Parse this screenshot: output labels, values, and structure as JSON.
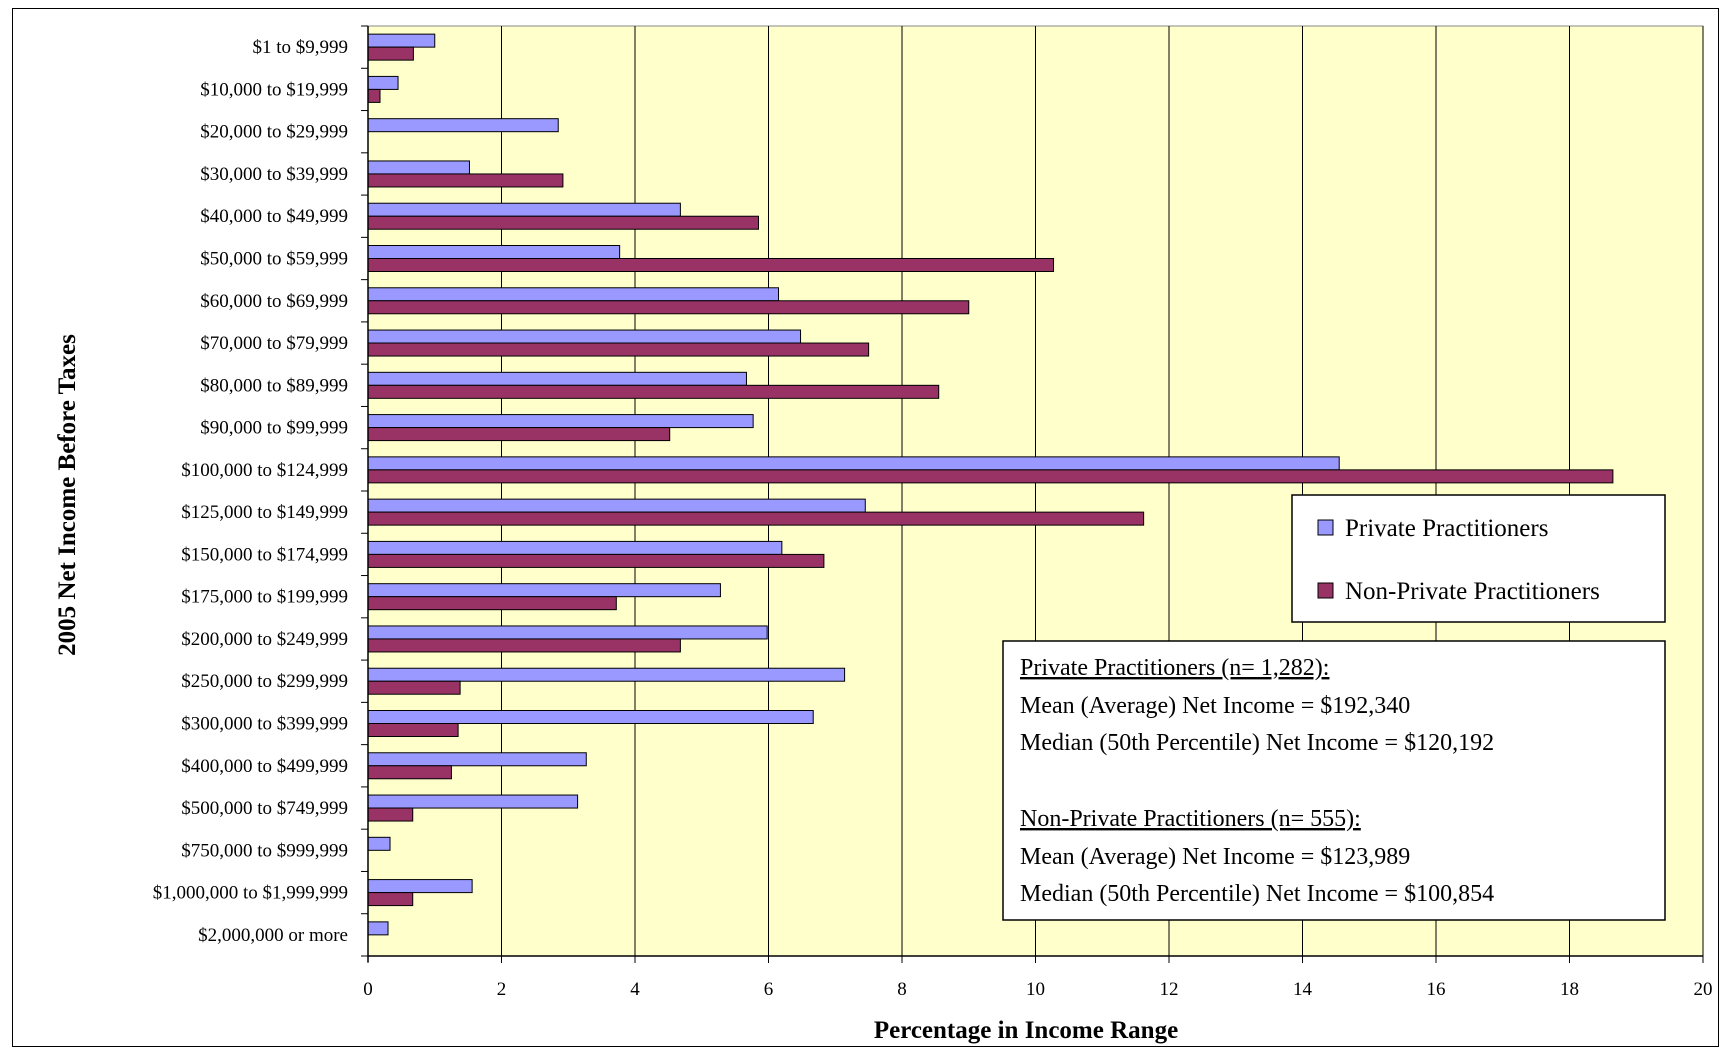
{
  "chart_data": {
    "type": "bar",
    "orientation": "horizontal",
    "xlabel": "Percentage in Income Range",
    "ylabel": "2005 Net Income Before Taxes",
    "xlim": [
      0,
      20
    ],
    "xticks": [
      "0",
      "2",
      "4",
      "6",
      "8",
      "10",
      "12",
      "14",
      "16",
      "18",
      "20"
    ],
    "grid": "vertical gridlines",
    "legend_position": "right",
    "categories": [
      "$1 to $9,999",
      "$10,000 to $19,999",
      "$20,000 to $29,999",
      "$30,000 to $39,999",
      "$40,000 to $49,999",
      "$50,000 to $59,999",
      "$60,000 to $69,999",
      "$70,000 to $79,999",
      "$80,000 to $89,999",
      "$90,000 to $99,999",
      "$100,000 to $124,999",
      "$125,000 to $149,999",
      "$150,000 to $174,999",
      "$175,000 to $199,999",
      "$200,000 to $249,999",
      "$250,000 to $299,999",
      "$300,000 to $399,999",
      "$400,000 to $499,999",
      "$500,000 to $749,999",
      "$750,000 to $999,999",
      "$1,000,000 to $1,999,999",
      "$2,000,000 or more"
    ],
    "series": [
      {
        "name": "Private Practitioners",
        "color": "#9999ff",
        "values": [
          1.0,
          0.45,
          2.85,
          1.52,
          4.68,
          3.77,
          6.15,
          6.48,
          5.67,
          5.77,
          14.55,
          7.45,
          6.2,
          5.28,
          5.98,
          7.14,
          6.67,
          3.27,
          3.14,
          0.33,
          1.56,
          0.3
        ]
      },
      {
        "name": "Non-Private Practitioners",
        "color": "#993366",
        "values": [
          0.68,
          0.18,
          0.0,
          2.92,
          5.85,
          10.27,
          9.0,
          7.5,
          8.55,
          4.52,
          18.65,
          11.62,
          6.83,
          3.72,
          4.68,
          1.38,
          1.35,
          1.25,
          0.67,
          0.0,
          0.67,
          0.0
        ]
      }
    ],
    "stats_box": {
      "private_heading": "Private Practitioners (n= 1,282):",
      "private_mean": "Mean (Average) Net Income = $192,340",
      "private_median": "Median (50th Percentile) Net Income = $120,192",
      "nonprivate_heading": "Non-Private Practitioners (n= 555):",
      "nonprivate_mean": "Mean (Average) Net Income = $123,989",
      "nonprivate_median": "Median (50th Percentile) Net Income = $100,854"
    },
    "colors": {
      "plot_background": "#ffffcc",
      "gridline": "#000000"
    }
  }
}
